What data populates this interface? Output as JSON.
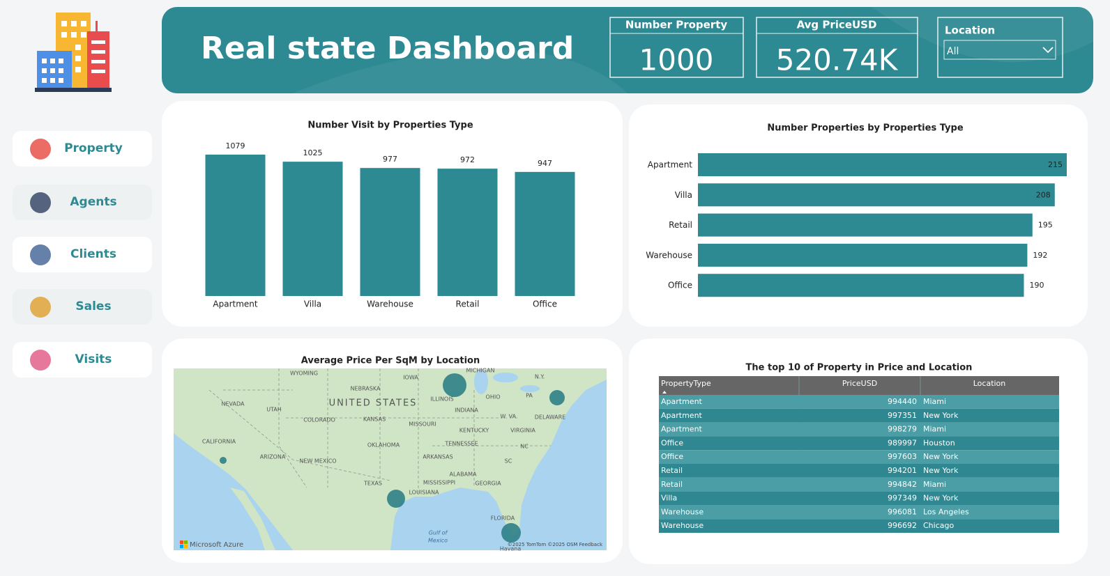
{
  "header": {
    "title": "Real state Dashboard"
  },
  "nav": [
    "Property",
    "Agents",
    "Clients",
    "Sales",
    "Visits"
  ],
  "kpis": [
    {
      "label": "Number Property",
      "value": 1000
    },
    {
      "label": "Avg PriceUSD",
      "value": "520.74K"
    }
  ],
  "filter": {
    "label": "Location",
    "selected": "All"
  },
  "chart_data": [
    {
      "type": "bar",
      "title": "Number Visit by Properties Type",
      "categories": [
        "Apartment",
        "Villa",
        "Warehouse",
        "Retail",
        "Office"
      ],
      "values": [
        1079,
        1025,
        977,
        972,
        947
      ],
      "color": "#2e8a92"
    },
    {
      "type": "barh",
      "title": "Number Properties by Properties Type",
      "categories": [
        "Apartment",
        "Villa",
        "Retail",
        "Warehouse",
        "Office"
      ],
      "values": [
        215,
        208,
        195,
        192,
        190
      ],
      "color": "#2e8a92"
    }
  ],
  "map": {
    "title": "Average Price Per SqM by Location",
    "labels": [
      "WYOMING",
      "NEBRASKA",
      "IOWA",
      "MICHIGAN",
      "N.Y.",
      "NEVADA",
      "UTAH",
      "UNITED STATES",
      "ILLINOIS",
      "OHIO",
      "PA",
      "COLORADO",
      "KANSAS",
      "MISSOURI",
      "INDIANA",
      "W. VA.",
      "DELAWARE",
      "KENTUCKY",
      "VIRGINIA",
      "CALIFORNIA",
      "OKLAHOMA",
      "TENNESSEE",
      "NC",
      "ARIZONA",
      "NEW MEXICO",
      "ARKANSAS",
      "SC",
      "ALABAMA",
      "TEXAS",
      "MISSISSIPPI",
      "GEORGIA",
      "LOUISIANA",
      "FLORIDA",
      "Gulf of",
      "Mexico",
      "Havana"
    ],
    "attribution": "Microsoft Azure",
    "credits": "©2025 TomTom ©2025 OSM Feedback"
  },
  "table": {
    "title": "The top 10 of Property in Price and Location",
    "columns": [
      "PropertyType",
      "PriceUSD",
      "Location"
    ],
    "rows": [
      [
        "Apartment",
        994440,
        "Miami"
      ],
      [
        "Apartment",
        997351,
        "New York"
      ],
      [
        "Apartment",
        998279,
        "Miami"
      ],
      [
        "Office",
        989997,
        "Houston"
      ],
      [
        "Office",
        997603,
        "New York"
      ],
      [
        "Retail",
        994201,
        "New York"
      ],
      [
        "Retail",
        994842,
        "Miami"
      ],
      [
        "Villa",
        997349,
        "New York"
      ],
      [
        "Warehouse",
        996081,
        "Los Angeles"
      ],
      [
        "Warehouse",
        996692,
        "Chicago"
      ]
    ]
  }
}
